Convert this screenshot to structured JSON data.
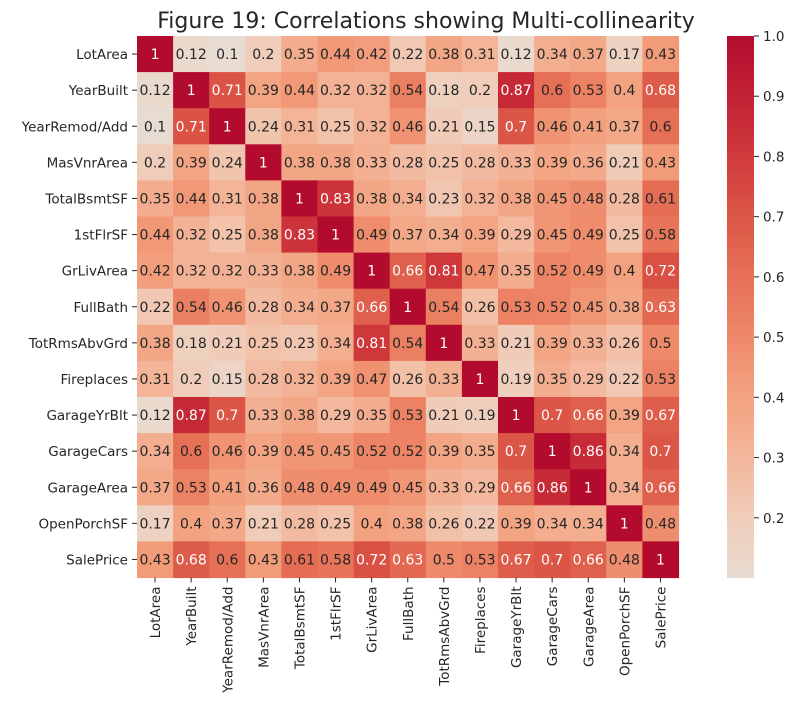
{
  "chart_data": {
    "type": "heatmap",
    "title": "Figure 19: Correlations showing Multi-collinearity",
    "labels": [
      "LotArea",
      "YearBuilt",
      "YearRemod/Add",
      "MasVnrArea",
      "TotalBsmtSF",
      "1stFlrSF",
      "GrLivArea",
      "FullBath",
      "TotRmsAbvGrd",
      "Fireplaces",
      "GarageYrBlt",
      "GarageCars",
      "GarageArea",
      "OpenPorchSF",
      "SalePrice"
    ],
    "values": [
      [
        1,
        0.12,
        0.1,
        0.2,
        0.35,
        0.44,
        0.42,
        0.22,
        0.38,
        0.31,
        0.12,
        0.34,
        0.37,
        0.17,
        0.43
      ],
      [
        0.12,
        1,
        0.71,
        0.39,
        0.44,
        0.32,
        0.32,
        0.54,
        0.18,
        0.2,
        0.87,
        0.6,
        0.53,
        0.4,
        0.68
      ],
      [
        0.1,
        0.71,
        1,
        0.24,
        0.31,
        0.25,
        0.32,
        0.46,
        0.21,
        0.15,
        0.7,
        0.46,
        0.41,
        0.37,
        0.6
      ],
      [
        0.2,
        0.39,
        0.24,
        1,
        0.38,
        0.38,
        0.33,
        0.28,
        0.25,
        0.28,
        0.33,
        0.39,
        0.36,
        0.21,
        0.43
      ],
      [
        0.35,
        0.44,
        0.31,
        0.38,
        1,
        0.83,
        0.38,
        0.34,
        0.23,
        0.32,
        0.38,
        0.45,
        0.48,
        0.28,
        0.61
      ],
      [
        0.44,
        0.32,
        0.25,
        0.38,
        0.83,
        1,
        0.49,
        0.37,
        0.34,
        0.39,
        0.29,
        0.45,
        0.49,
        0.25,
        0.58
      ],
      [
        0.42,
        0.32,
        0.32,
        0.33,
        0.38,
        0.49,
        1,
        0.66,
        0.81,
        0.47,
        0.35,
        0.52,
        0.49,
        0.4,
        0.72
      ],
      [
        0.22,
        0.54,
        0.46,
        0.28,
        0.34,
        0.37,
        0.66,
        1,
        0.54,
        0.26,
        0.53,
        0.52,
        0.45,
        0.38,
        0.63
      ],
      [
        0.38,
        0.18,
        0.21,
        0.25,
        0.23,
        0.34,
        0.81,
        0.54,
        1,
        0.33,
        0.21,
        0.39,
        0.33,
        0.26,
        0.5
      ],
      [
        0.31,
        0.2,
        0.15,
        0.28,
        0.32,
        0.39,
        0.47,
        0.26,
        0.33,
        1,
        0.19,
        0.35,
        0.29,
        0.22,
        0.53
      ],
      [
        0.12,
        0.87,
        0.7,
        0.33,
        0.38,
        0.29,
        0.35,
        0.53,
        0.21,
        0.19,
        1,
        0.7,
        0.66,
        0.39,
        0.67
      ],
      [
        0.34,
        0.6,
        0.46,
        0.39,
        0.45,
        0.45,
        0.52,
        0.52,
        0.39,
        0.35,
        0.7,
        1,
        0.86,
        0.34,
        0.7
      ],
      [
        0.37,
        0.53,
        0.41,
        0.36,
        0.48,
        0.49,
        0.49,
        0.45,
        0.33,
        0.29,
        0.66,
        0.86,
        1,
        0.34,
        0.66
      ],
      [
        0.17,
        0.4,
        0.37,
        0.21,
        0.28,
        0.25,
        0.4,
        0.38,
        0.26,
        0.22,
        0.39,
        0.34,
        0.34,
        1,
        0.48
      ],
      [
        0.43,
        0.68,
        0.6,
        0.43,
        0.61,
        0.58,
        0.72,
        0.63,
        0.5,
        0.53,
        0.67,
        0.7,
        0.66,
        0.48,
        1
      ]
    ],
    "color_range": [
      0.1,
      1.0
    ],
    "colorbar_ticks": [
      0.2,
      0.3,
      0.4,
      0.5,
      0.6,
      0.7,
      0.8,
      0.9,
      1.0
    ],
    "colorbar_tick_labels": [
      "0.2",
      "0.3",
      "0.4",
      "0.5",
      "0.6",
      "0.7",
      "0.8",
      "0.9",
      "1.0"
    ],
    "colormap": "coolwarm-center-red",
    "colormap_low": "#e8dcd2",
    "colormap_high": "#b30b2e",
    "grid": false,
    "colorbar_position": "right"
  }
}
